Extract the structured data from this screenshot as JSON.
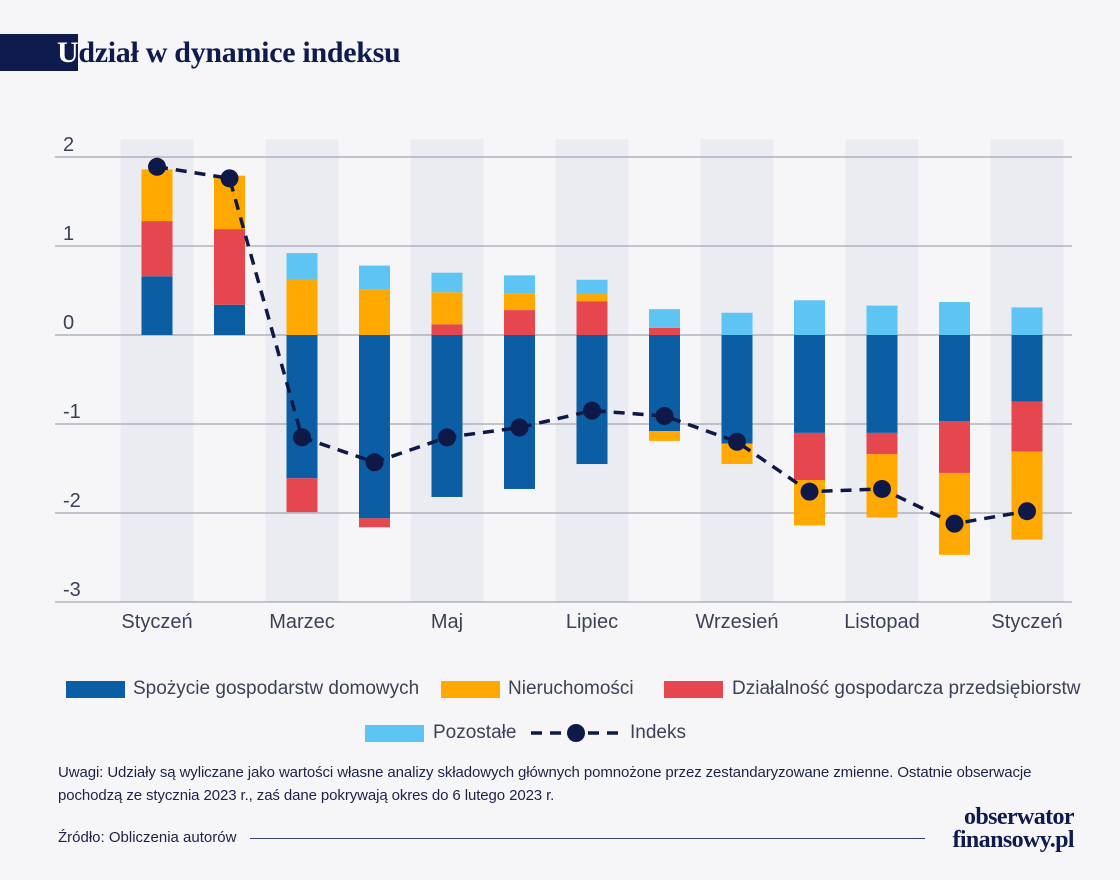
{
  "colors": {
    "background": "#f6f6f9",
    "band": "#ebebf2",
    "grid": "#a3a5b2",
    "text": "#3b4158",
    "navy": "#0f1a4d"
  },
  "chart_data": {
    "type": "bar",
    "stacked": true,
    "title": "Udział w dynamice indeksu",
    "categories": [
      "Styczeń",
      "",
      "Marzec",
      "",
      "Maj",
      "",
      "Lipiec",
      "",
      "Wrzesień",
      "",
      "Listopad",
      "",
      "Styczeń"
    ],
    "y_ticks": [
      2,
      1,
      0,
      -1,
      -2,
      -3
    ],
    "ylim": [
      -3,
      2.2
    ],
    "grid": true,
    "legend_position": "bottom",
    "series": [
      {
        "name": "Spożycie gospodarstw domowych",
        "type": "bar",
        "color": "#0b5ea4",
        "values": [
          0.66,
          0.34,
          -1.61,
          -2.06,
          -1.82,
          -1.73,
          -1.45,
          -1.08,
          -1.22,
          -1.1,
          -1.1,
          -0.97,
          -0.75
        ]
      },
      {
        "name": "Nieruchomości",
        "type": "bar",
        "color": "#ffa800",
        "values": [
          0.58,
          0.6,
          0.63,
          0.51,
          0.36,
          0.19,
          0.08,
          -0.11,
          -0.23,
          -0.51,
          -0.71,
          -0.92,
          -0.99
        ]
      },
      {
        "name": "Działalność gospodarcza przedsiębiorstw",
        "type": "bar",
        "color": "#e6474f",
        "values": [
          0.62,
          0.85,
          -0.38,
          -0.1,
          0.12,
          0.28,
          0.38,
          0.08,
          0,
          -0.53,
          -0.24,
          -0.58,
          -0.56
        ]
      },
      {
        "name": "Pozostałe",
        "type": "bar",
        "color": "#5ec4f3",
        "values": [
          0,
          0,
          0.29,
          0.27,
          0.22,
          0.2,
          0.16,
          0.21,
          0.25,
          0.39,
          0.33,
          0.37,
          0.31
        ]
      },
      {
        "name": "Indeks",
        "type": "line",
        "line_style": "dashed",
        "markers": "circle",
        "color": "#0e1948",
        "values": [
          1.89,
          1.76,
          -1.15,
          -1.43,
          -1.15,
          -1.04,
          -0.85,
          -0.91,
          -1.2,
          -1.76,
          -1.73,
          -2.12,
          -1.98
        ]
      }
    ]
  },
  "note": [
    "Uwagi: Udziały są wyliczane jako wartości własne analizy składowych głównych pomnożone przez zestandaryzowane zmienne. Ostatnie obserwacje",
    "pochodzą ze stycznia 2023 r., zaś dane pokrywają okres do 6 lutego 2023 r."
  ],
  "source": "Źródło: Obliczenia autorów",
  "logo": {
    "line1": "obserwator",
    "line2": "finansowy.pl"
  }
}
